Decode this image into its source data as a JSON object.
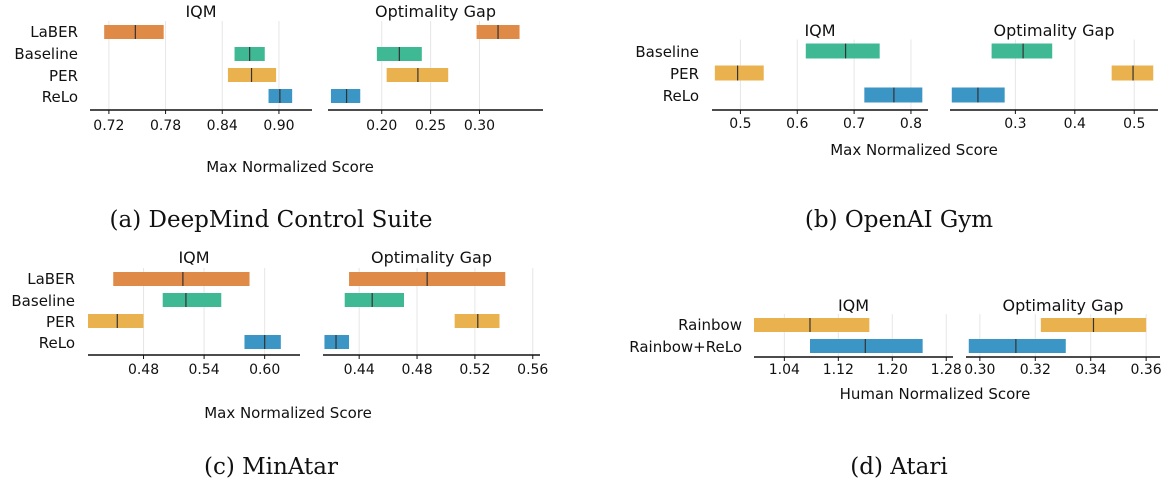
{
  "colors": {
    "LaBER": "#e08a47",
    "Baseline": "#3fb994",
    "PER": "#eab24e",
    "ReLo": "#3b95c5",
    "Rainbow": "#eab24e",
    "Rainbow+ReLo": "#3b95c5"
  },
  "chart_data": [
    {
      "type": "interval",
      "caption": "(a) DeepMind Control Suite",
      "xlabel": "Max Normalized Score",
      "methods": [
        "LaBER",
        "Baseline",
        "PER",
        "ReLo"
      ],
      "panels": [
        {
          "title": "IQM",
          "xlim": [
            0.7,
            0.935
          ],
          "ticks": [
            0.72,
            0.78,
            0.84,
            0.9
          ],
          "tick_labels": [
            "0.72",
            "0.78",
            "0.84",
            "0.90"
          ],
          "series": [
            {
              "name": "LaBER",
              "low": 0.715,
              "median": 0.748,
              "high": 0.778
            },
            {
              "name": "Baseline",
              "low": 0.853,
              "median": 0.869,
              "high": 0.885
            },
            {
              "name": "PER",
              "low": 0.846,
              "median": 0.871,
              "high": 0.897
            },
            {
              "name": "ReLo",
              "low": 0.889,
              "median": 0.901,
              "high": 0.914
            }
          ]
        },
        {
          "title": "Optimality Gap",
          "xlim": [
            0.145,
            0.365
          ],
          "ticks": [
            0.2,
            0.25,
            0.3
          ],
          "tick_labels": [
            "0.20",
            "0.25",
            "0.30"
          ],
          "series": [
            {
              "name": "LaBER",
              "low": 0.297,
              "median": 0.319,
              "high": 0.341
            },
            {
              "name": "Baseline",
              "low": 0.195,
              "median": 0.218,
              "high": 0.241
            },
            {
              "name": "PER",
              "low": 0.205,
              "median": 0.237,
              "high": 0.268
            },
            {
              "name": "ReLo",
              "low": 0.148,
              "median": 0.164,
              "high": 0.178
            }
          ]
        }
      ]
    },
    {
      "type": "interval",
      "caption": "(b) OpenAI Gym",
      "xlabel": "Max Normalized Score",
      "methods": [
        "Baseline",
        "PER",
        "ReLo"
      ],
      "panels": [
        {
          "title": "IQM",
          "xlim": [
            0.45,
            0.83
          ],
          "ticks": [
            0.5,
            0.6,
            0.7,
            0.8
          ],
          "tick_labels": [
            "0.5",
            "0.6",
            "0.7",
            "0.8"
          ],
          "series": [
            {
              "name": "Baseline",
              "low": 0.615,
              "median": 0.685,
              "high": 0.745
            },
            {
              "name": "PER",
              "low": 0.455,
              "median": 0.495,
              "high": 0.541
            },
            {
              "name": "ReLo",
              "low": 0.718,
              "median": 0.77,
              "high": 0.82
            }
          ]
        },
        {
          "title": "Optimality Gap",
          "xlim": [
            0.19,
            0.54
          ],
          "ticks": [
            0.3,
            0.4,
            0.5
          ],
          "tick_labels": [
            "0.3",
            "0.4",
            "0.5"
          ],
          "series": [
            {
              "name": "Baseline",
              "low": 0.26,
              "median": 0.313,
              "high": 0.362
            },
            {
              "name": "PER",
              "low": 0.462,
              "median": 0.498,
              "high": 0.532
            },
            {
              "name": "ReLo",
              "low": 0.193,
              "median": 0.237,
              "high": 0.282
            }
          ]
        }
      ]
    },
    {
      "type": "interval",
      "caption": "(c) MinAtar",
      "xlabel": "Max Normalized Score",
      "methods": [
        "LaBER",
        "Baseline",
        "PER",
        "ReLo"
      ],
      "panels": [
        {
          "title": "IQM",
          "xlim": [
            0.425,
            0.635
          ],
          "ticks": [
            0.48,
            0.54,
            0.6
          ],
          "tick_labels": [
            "0.48",
            "0.54",
            "0.60"
          ],
          "series": [
            {
              "name": "LaBER",
              "low": 0.45,
              "median": 0.519,
              "high": 0.585
            },
            {
              "name": "Baseline",
              "low": 0.499,
              "median": 0.522,
              "high": 0.557
            },
            {
              "name": "PER",
              "low": 0.425,
              "median": 0.454,
              "high": 0.48
            },
            {
              "name": "ReLo",
              "low": 0.58,
              "median": 0.6,
              "high": 0.616
            }
          ]
        },
        {
          "title": "Optimality Gap",
          "xlim": [
            0.415,
            0.565
          ],
          "ticks": [
            0.44,
            0.48,
            0.52,
            0.56
          ],
          "tick_labels": [
            "0.44",
            "0.48",
            "0.52",
            "0.56"
          ],
          "series": [
            {
              "name": "LaBER",
              "low": 0.433,
              "median": 0.487,
              "high": 0.541
            },
            {
              "name": "Baseline",
              "low": 0.43,
              "median": 0.449,
              "high": 0.471
            },
            {
              "name": "PER",
              "low": 0.506,
              "median": 0.522,
              "high": 0.537
            },
            {
              "name": "ReLo",
              "low": 0.416,
              "median": 0.424,
              "high": 0.433
            }
          ]
        }
      ]
    },
    {
      "type": "interval",
      "caption": "(d) Atari",
      "xlabel": "Human Normalized Score",
      "methods": [
        "Rainbow",
        "Rainbow+ReLo"
      ],
      "panels": [
        {
          "title": "IQM",
          "xlim": [
            0.995,
            1.29
          ],
          "ticks": [
            1.04,
            1.12,
            1.2,
            1.28
          ],
          "tick_labels": [
            "1.04",
            "1.12",
            "1.20",
            "1.28"
          ],
          "series": [
            {
              "name": "Rainbow",
              "low": 0.995,
              "median": 1.078,
              "high": 1.166
            },
            {
              "name": "Rainbow+ReLo",
              "low": 1.078,
              "median": 1.16,
              "high": 1.245
            }
          ]
        },
        {
          "title": "Optimality Gap",
          "xlim": [
            0.295,
            0.365
          ],
          "ticks": [
            0.3,
            0.32,
            0.34,
            0.36
          ],
          "tick_labels": [
            "0.30",
            "0.32",
            "0.34",
            "0.36"
          ],
          "series": [
            {
              "name": "Rainbow",
              "low": 0.322,
              "median": 0.341,
              "high": 0.36
            },
            {
              "name": "Rainbow+ReLo",
              "low": 0.296,
              "median": 0.313,
              "high": 0.331
            }
          ]
        }
      ]
    }
  ]
}
